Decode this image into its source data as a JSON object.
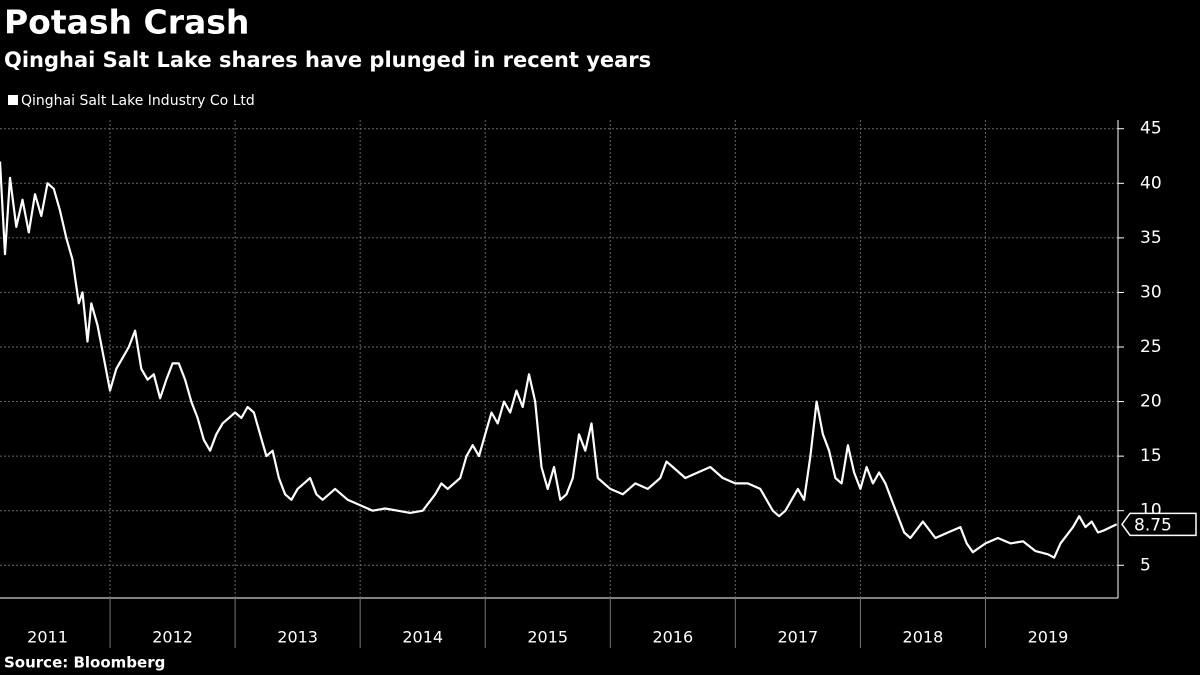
{
  "chart_data": {
    "type": "line",
    "title": "Potash Crash",
    "subtitle": "Qinghai Salt Lake shares have plunged in recent years",
    "source": "Source: Bloomberg",
    "legend": "top-left",
    "grid": true,
    "background": "#000000",
    "x": [
      2011.12,
      2011.16,
      2011.2,
      2011.25,
      2011.3,
      2011.35,
      2011.4,
      2011.45,
      2011.5,
      2011.55,
      2011.6,
      2011.65,
      2011.7,
      2011.75,
      2011.78,
      2011.82,
      2011.85,
      2011.9,
      2011.95,
      2012.0,
      2012.05,
      2012.1,
      2012.15,
      2012.2,
      2012.25,
      2012.3,
      2012.35,
      2012.4,
      2012.45,
      2012.5,
      2012.55,
      2012.6,
      2012.65,
      2012.7,
      2012.75,
      2012.8,
      2012.85,
      2012.9,
      2012.95,
      2013.0,
      2013.05,
      2013.1,
      2013.15,
      2013.2,
      2013.25,
      2013.3,
      2013.35,
      2013.4,
      2013.45,
      2013.5,
      2013.55,
      2013.6,
      2013.65,
      2013.7,
      2013.8,
      2013.9,
      2014.0,
      2014.1,
      2014.2,
      2014.3,
      2014.4,
      2014.5,
      2014.6,
      2014.65,
      2014.7,
      2014.8,
      2014.85,
      2014.9,
      2014.95,
      2015.0,
      2015.05,
      2015.1,
      2015.15,
      2015.2,
      2015.25,
      2015.3,
      2015.35,
      2015.4,
      2015.45,
      2015.5,
      2015.55,
      2015.6,
      2015.65,
      2015.7,
      2015.75,
      2015.8,
      2015.85,
      2015.9,
      2015.95,
      2016.0,
      2016.1,
      2016.2,
      2016.3,
      2016.4,
      2016.45,
      2016.5,
      2016.6,
      2016.7,
      2016.8,
      2016.9,
      2017.0,
      2017.1,
      2017.2,
      2017.3,
      2017.35,
      2017.4,
      2017.45,
      2017.5,
      2017.55,
      2017.6,
      2017.65,
      2017.7,
      2017.75,
      2017.8,
      2017.85,
      2017.9,
      2017.95,
      2018.0,
      2018.05,
      2018.1,
      2018.15,
      2018.2,
      2018.25,
      2018.3,
      2018.35,
      2018.4,
      2018.5,
      2018.6,
      2018.7,
      2018.8,
      2018.85,
      2018.9,
      2019.0,
      2019.1,
      2019.2,
      2019.3,
      2019.4,
      2019.5,
      2019.55,
      2019.6,
      2019.7,
      2019.75,
      2019.8,
      2019.85,
      2019.9,
      2019.95,
      2020.05
    ],
    "series": [
      {
        "name": "Qinghai Salt Lake Industry Co Ltd",
        "color": "#ffffff",
        "values": [
          42,
          33.5,
          40.5,
          36,
          38.5,
          35.5,
          39,
          37,
          40,
          39.5,
          37.5,
          35,
          33,
          29,
          30,
          25.5,
          29,
          27,
          24,
          21,
          23,
          24,
          25,
          26.5,
          23,
          22,
          22.5,
          20.3,
          22,
          23.5,
          23.5,
          22,
          20,
          18.5,
          16.5,
          15.5,
          17,
          18,
          18.5,
          19,
          18.5,
          19.5,
          19,
          17,
          15,
          15.5,
          13,
          11.5,
          11,
          12,
          12.5,
          13,
          11.5,
          11,
          12,
          11,
          10.5,
          10,
          10.2,
          10,
          9.8,
          10,
          11.5,
          12.5,
          12,
          13,
          15,
          16,
          15,
          17,
          19,
          18,
          20,
          19,
          21,
          19.5,
          22.5,
          20,
          14,
          12,
          14,
          11,
          11.5,
          13,
          17,
          15.5,
          18,
          13,
          12.5,
          12,
          11.5,
          12.5,
          12,
          13,
          14.5,
          14,
          13,
          13.5,
          14,
          13,
          12.5,
          12.5,
          12,
          10,
          9.5,
          10,
          11,
          12,
          11,
          15,
          20,
          17,
          15.5,
          13,
          12.5,
          16,
          13.5,
          12,
          14,
          12.5,
          13.5,
          12.5,
          11,
          9.5,
          8,
          7.5,
          9,
          7.5,
          8,
          8.5,
          7,
          6.2,
          7,
          7.5,
          7,
          7.2,
          6.3,
          6,
          5.7,
          7,
          8.5,
          9.5,
          8.5,
          9,
          8,
          8.2,
          8.75
        ]
      }
    ],
    "xlim": [
      2011.12,
      2020.06
    ],
    "xticks": [
      {
        "value": 2011.5,
        "label": "2011"
      },
      {
        "value": 2012.5,
        "label": "2012"
      },
      {
        "value": 2013.5,
        "label": "2013"
      },
      {
        "value": 2014.5,
        "label": "2014"
      },
      {
        "value": 2015.5,
        "label": "2015"
      },
      {
        "value": 2016.5,
        "label": "2016"
      },
      {
        "value": 2017.5,
        "label": "2017"
      },
      {
        "value": 2018.5,
        "label": "2018"
      },
      {
        "value": 2019.5,
        "label": "2019"
      }
    ],
    "ylim": [
      2,
      45.8
    ],
    "yticks": [
      5,
      10,
      15,
      20,
      25,
      30,
      35,
      40,
      45
    ]
  }
}
